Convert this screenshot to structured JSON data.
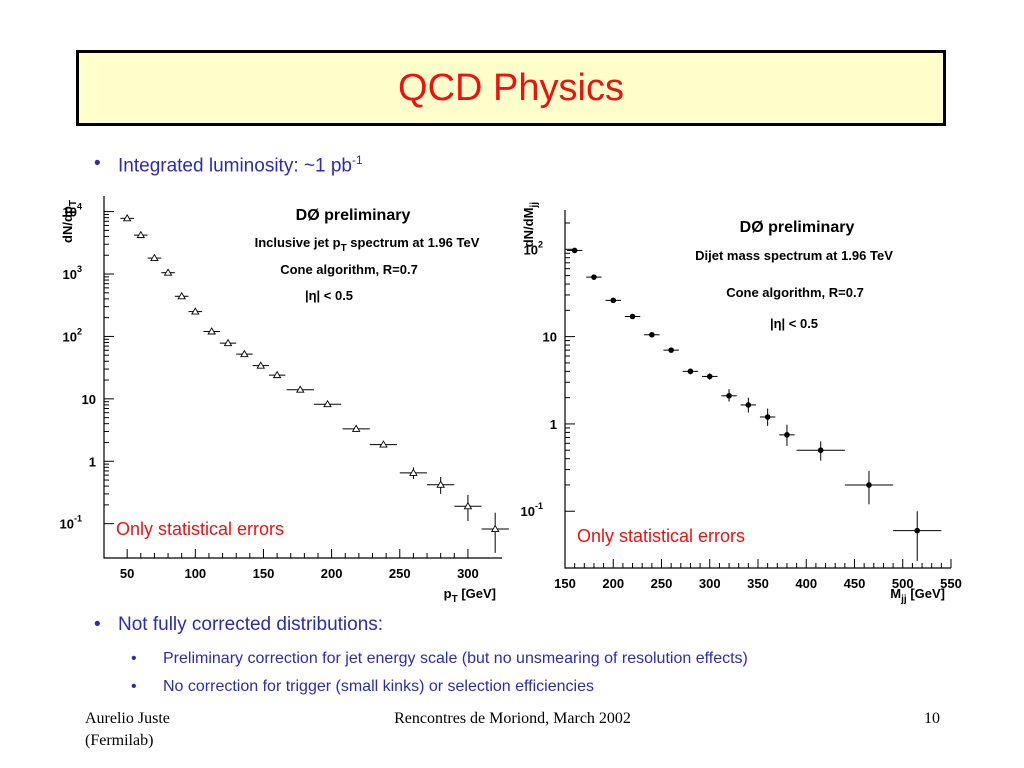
{
  "slide": {
    "title": "QCD Physics",
    "bullets": {
      "lumi_text": "Integrated luminosity: ~1 pb",
      "lumi_sup": "-1",
      "not_corrected": "Not fully corrected distributions:",
      "sub1": "Preliminary correction for jet energy scale (but no unsmearing of resolution effects)",
      "sub2": "No correction for trigger (small kinks) or selection efficiencies"
    },
    "bullet_symbol": "•",
    "footer": {
      "author_line1": "Aurelio Juste",
      "author_line2": "(Fermilab)",
      "event": "Rencontres de Moriond, March 2002",
      "page": "10"
    },
    "colors": {
      "title": "#ee1111",
      "title_bg": "#ffffcc",
      "bullet_text": "#2b2bb4",
      "note": "#ee1111"
    }
  },
  "chart_data": [
    {
      "type": "scatter",
      "title": "DØ preliminary",
      "annotations": [
        "Inclusive jet p_T spectrum at 1.96 TeV",
        "Cone algorithm, R=0.7",
        "|η| < 0.5"
      ],
      "note": "Only statistical errors",
      "xlabel": "p_T [GeV]",
      "ylabel": "dN/dp_T",
      "xlim": [
        33,
        325
      ],
      "ylim_log10": [
        -1.55,
        4.25
      ],
      "y_scale": "log",
      "x_ticks": [
        50,
        100,
        150,
        200,
        250,
        300
      ],
      "y_ticks": [
        {
          "exp": -1,
          "label": "10",
          "sup": "-1"
        },
        {
          "exp": 0,
          "label": "1",
          "sup": ""
        },
        {
          "exp": 1,
          "label": "10",
          "sup": ""
        },
        {
          "exp": 2,
          "label": "10",
          "sup": "2"
        },
        {
          "exp": 3,
          "label": "10",
          "sup": "3"
        },
        {
          "exp": 4,
          "label": "10",
          "sup": "4"
        }
      ],
      "marker": "open-triangle",
      "series": [
        {
          "points": [
            {
              "x": 50,
              "y": 7800,
              "xerr": 5,
              "ylo": 7800,
              "yhi": 7800
            },
            {
              "x": 60,
              "y": 4200,
              "xerr": 5,
              "ylo": 4200,
              "yhi": 4200
            },
            {
              "x": 70,
              "y": 1800,
              "xerr": 5,
              "ylo": 1800,
              "yhi": 1800
            },
            {
              "x": 80,
              "y": 1050,
              "xerr": 5,
              "ylo": 1050,
              "yhi": 1050
            },
            {
              "x": 90,
              "y": 440,
              "xerr": 5,
              "ylo": 440,
              "yhi": 440
            },
            {
              "x": 100,
              "y": 250,
              "xerr": 5,
              "ylo": 250,
              "yhi": 250
            },
            {
              "x": 112,
              "y": 120,
              "xerr": 6,
              "ylo": 120,
              "yhi": 120
            },
            {
              "x": 124,
              "y": 78,
              "xerr": 6,
              "ylo": 78,
              "yhi": 78
            },
            {
              "x": 136,
              "y": 52,
              "xerr": 6,
              "ylo": 52,
              "yhi": 52
            },
            {
              "x": 148,
              "y": 34,
              "xerr": 6,
              "ylo": 34,
              "yhi": 34
            },
            {
              "x": 160,
              "y": 24,
              "xerr": 6,
              "ylo": 24,
              "yhi": 24
            },
            {
              "x": 177,
              "y": 14,
              "xerr": 10,
              "ylo": 14,
              "yhi": 14
            },
            {
              "x": 197,
              "y": 8.2,
              "xerr": 10,
              "ylo": 8.2,
              "yhi": 8.2
            },
            {
              "x": 218,
              "y": 3.3,
              "xerr": 10,
              "ylo": 3.3,
              "yhi": 3.3
            },
            {
              "x": 238,
              "y": 1.85,
              "xerr": 10,
              "ylo": 1.85,
              "yhi": 1.85
            },
            {
              "x": 260,
              "y": 0.65,
              "xerr": 10,
              "ylo": 0.52,
              "yhi": 0.8
            },
            {
              "x": 280,
              "y": 0.42,
              "xerr": 10,
              "ylo": 0.3,
              "yhi": 0.56
            },
            {
              "x": 300,
              "y": 0.19,
              "xerr": 10,
              "ylo": 0.11,
              "yhi": 0.29
            },
            {
              "x": 320,
              "y": 0.082,
              "xerr": 10,
              "ylo": 0.034,
              "yhi": 0.15
            }
          ]
        }
      ]
    },
    {
      "type": "scatter",
      "title": "DØ preliminary",
      "annotations": [
        "Dijet mass spectrum at 1.96 TeV",
        "Cone algorithm, R=0.7",
        "|η| < 0.5"
      ],
      "note": "Only statistical errors",
      "xlabel": "M_jj [GeV]",
      "ylabel": "dN/dM_jj",
      "xlim": [
        150,
        550
      ],
      "ylim_log10": [
        -1.65,
        2.45
      ],
      "y_scale": "log",
      "x_ticks": [
        150,
        200,
        250,
        300,
        350,
        400,
        450,
        500,
        550
      ],
      "y_ticks": [
        {
          "exp": -1,
          "label": "10",
          "sup": "-1"
        },
        {
          "exp": 0,
          "label": "1",
          "sup": ""
        },
        {
          "exp": 1,
          "label": "10",
          "sup": ""
        },
        {
          "exp": 2,
          "label": "10",
          "sup": "2"
        }
      ],
      "marker": "filled-circle",
      "series": [
        {
          "points": [
            {
              "x": 160,
              "y": 97,
              "xerr": 8,
              "ylo": 97,
              "yhi": 97
            },
            {
              "x": 180,
              "y": 48,
              "xerr": 8,
              "ylo": 48,
              "yhi": 48
            },
            {
              "x": 200,
              "y": 26,
              "xerr": 8,
              "ylo": 26,
              "yhi": 26
            },
            {
              "x": 220,
              "y": 17,
              "xerr": 8,
              "ylo": 17,
              "yhi": 17
            },
            {
              "x": 240,
              "y": 10.5,
              "xerr": 8,
              "ylo": 10.5,
              "yhi": 10.5
            },
            {
              "x": 260,
              "y": 7,
              "xerr": 8,
              "ylo": 7,
              "yhi": 7
            },
            {
              "x": 280,
              "y": 4,
              "xerr": 8,
              "ylo": 3.7,
              "yhi": 4.3
            },
            {
              "x": 300,
              "y": 3.5,
              "xerr": 8,
              "ylo": 3.2,
              "yhi": 3.8
            },
            {
              "x": 320,
              "y": 2.1,
              "xerr": 8,
              "ylo": 1.8,
              "yhi": 2.5
            },
            {
              "x": 340,
              "y": 1.65,
              "xerr": 8,
              "ylo": 1.35,
              "yhi": 2.0
            },
            {
              "x": 360,
              "y": 1.2,
              "xerr": 8,
              "ylo": 0.95,
              "yhi": 1.5
            },
            {
              "x": 380,
              "y": 0.75,
              "xerr": 8,
              "ylo": 0.56,
              "yhi": 0.98
            },
            {
              "x": 415,
              "y": 0.5,
              "xerr": 25,
              "ylo": 0.38,
              "yhi": 0.63
            },
            {
              "x": 465,
              "y": 0.2,
              "xerr": 25,
              "ylo": 0.12,
              "yhi": 0.29
            },
            {
              "x": 515,
              "y": 0.06,
              "xerr": 25,
              "ylo": 0.027,
              "yhi": 0.1
            }
          ]
        }
      ]
    }
  ]
}
